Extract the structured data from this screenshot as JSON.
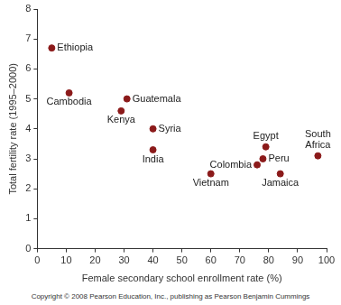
{
  "chart_data": {
    "type": "scatter",
    "x_label": "Female secondary school enrollment rate (%)",
    "y_label": "Total fertility rate (1995–2000)",
    "point_labels": [
      "Ethiopia",
      "Cambodia",
      "Guatemala",
      "Kenya",
      "Syria",
      "India",
      "Vietnam",
      "Colombia",
      "Egypt",
      "Peru",
      "Jamaica",
      "South Africa"
    ],
    "x": [
      5,
      11,
      31,
      29,
      40,
      40,
      60,
      76,
      79,
      78,
      84,
      97
    ],
    "values": [
      6.7,
      5.2,
      5.0,
      4.6,
      4.0,
      3.3,
      2.5,
      2.8,
      3.4,
      3.0,
      2.5,
      3.1
    ],
    "color": "#8b1a1a",
    "marker": "circle",
    "xlim": [
      0,
      100
    ],
    "xticks": [
      0,
      10,
      20,
      30,
      40,
      50,
      60,
      70,
      80,
      90,
      100
    ],
    "ylim": [
      0,
      8
    ],
    "yticks": [
      0,
      1,
      2,
      3,
      4,
      5,
      6,
      7,
      8
    ],
    "grid": false,
    "footer": "Copyright © 2008 Pearson Education, Inc., publishing as Pearson Benjamin Cummings"
  }
}
